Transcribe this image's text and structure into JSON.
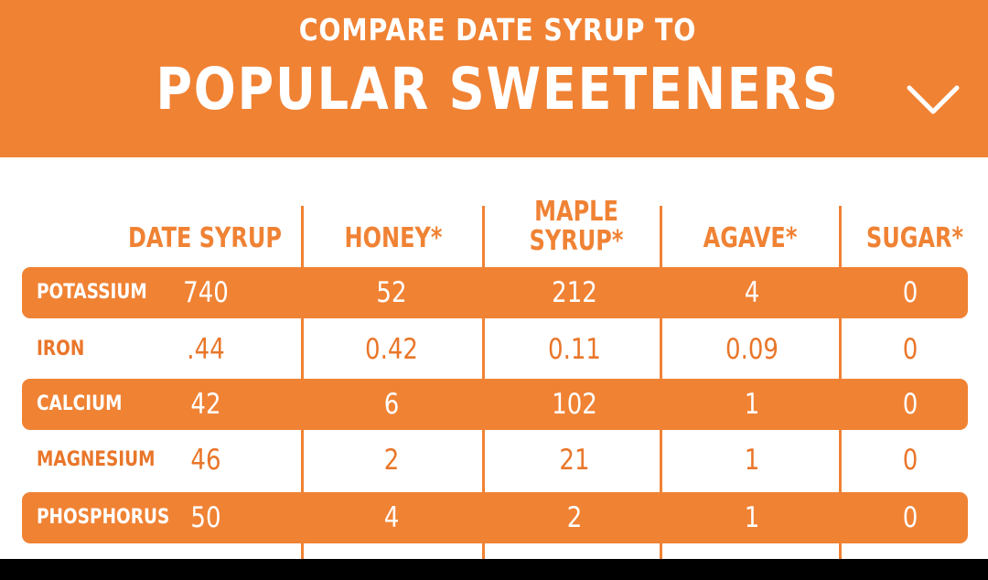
{
  "header": {
    "subtitle": "COMPARE DATE SYRUP TO",
    "title": "POPULAR SWEETENERS",
    "chevron_icon": "chevron-down-icon"
  },
  "colors": {
    "accent": "#f08234",
    "background": "#ffffff",
    "text_on_accent": "#ffffff"
  },
  "table": {
    "columns": [
      {
        "lines": [
          "DATE SYRUP"
        ]
      },
      {
        "lines": [
          "HONEY*"
        ]
      },
      {
        "lines": [
          "MAPLE",
          "SYRUP*"
        ]
      },
      {
        "lines": [
          "AGAVE*"
        ]
      },
      {
        "lines": [
          "SUGAR*"
        ]
      }
    ],
    "rows": [
      {
        "label": "POTASSIUM",
        "values": [
          "740",
          "52",
          "212",
          "4",
          "0"
        ]
      },
      {
        "label": "IRON",
        "values": [
          ".44",
          "0.42",
          "0.11",
          "0.09",
          "0"
        ]
      },
      {
        "label": "CALCIUM",
        "values": [
          "42",
          "6",
          "102",
          "1",
          "0"
        ]
      },
      {
        "label": "MAGNESIUM",
        "values": [
          "46",
          "2",
          "21",
          "1",
          "0"
        ]
      },
      {
        "label": "PHOSPHORUS",
        "values": [
          "50",
          "4",
          "2",
          "1",
          "0"
        ]
      }
    ]
  }
}
